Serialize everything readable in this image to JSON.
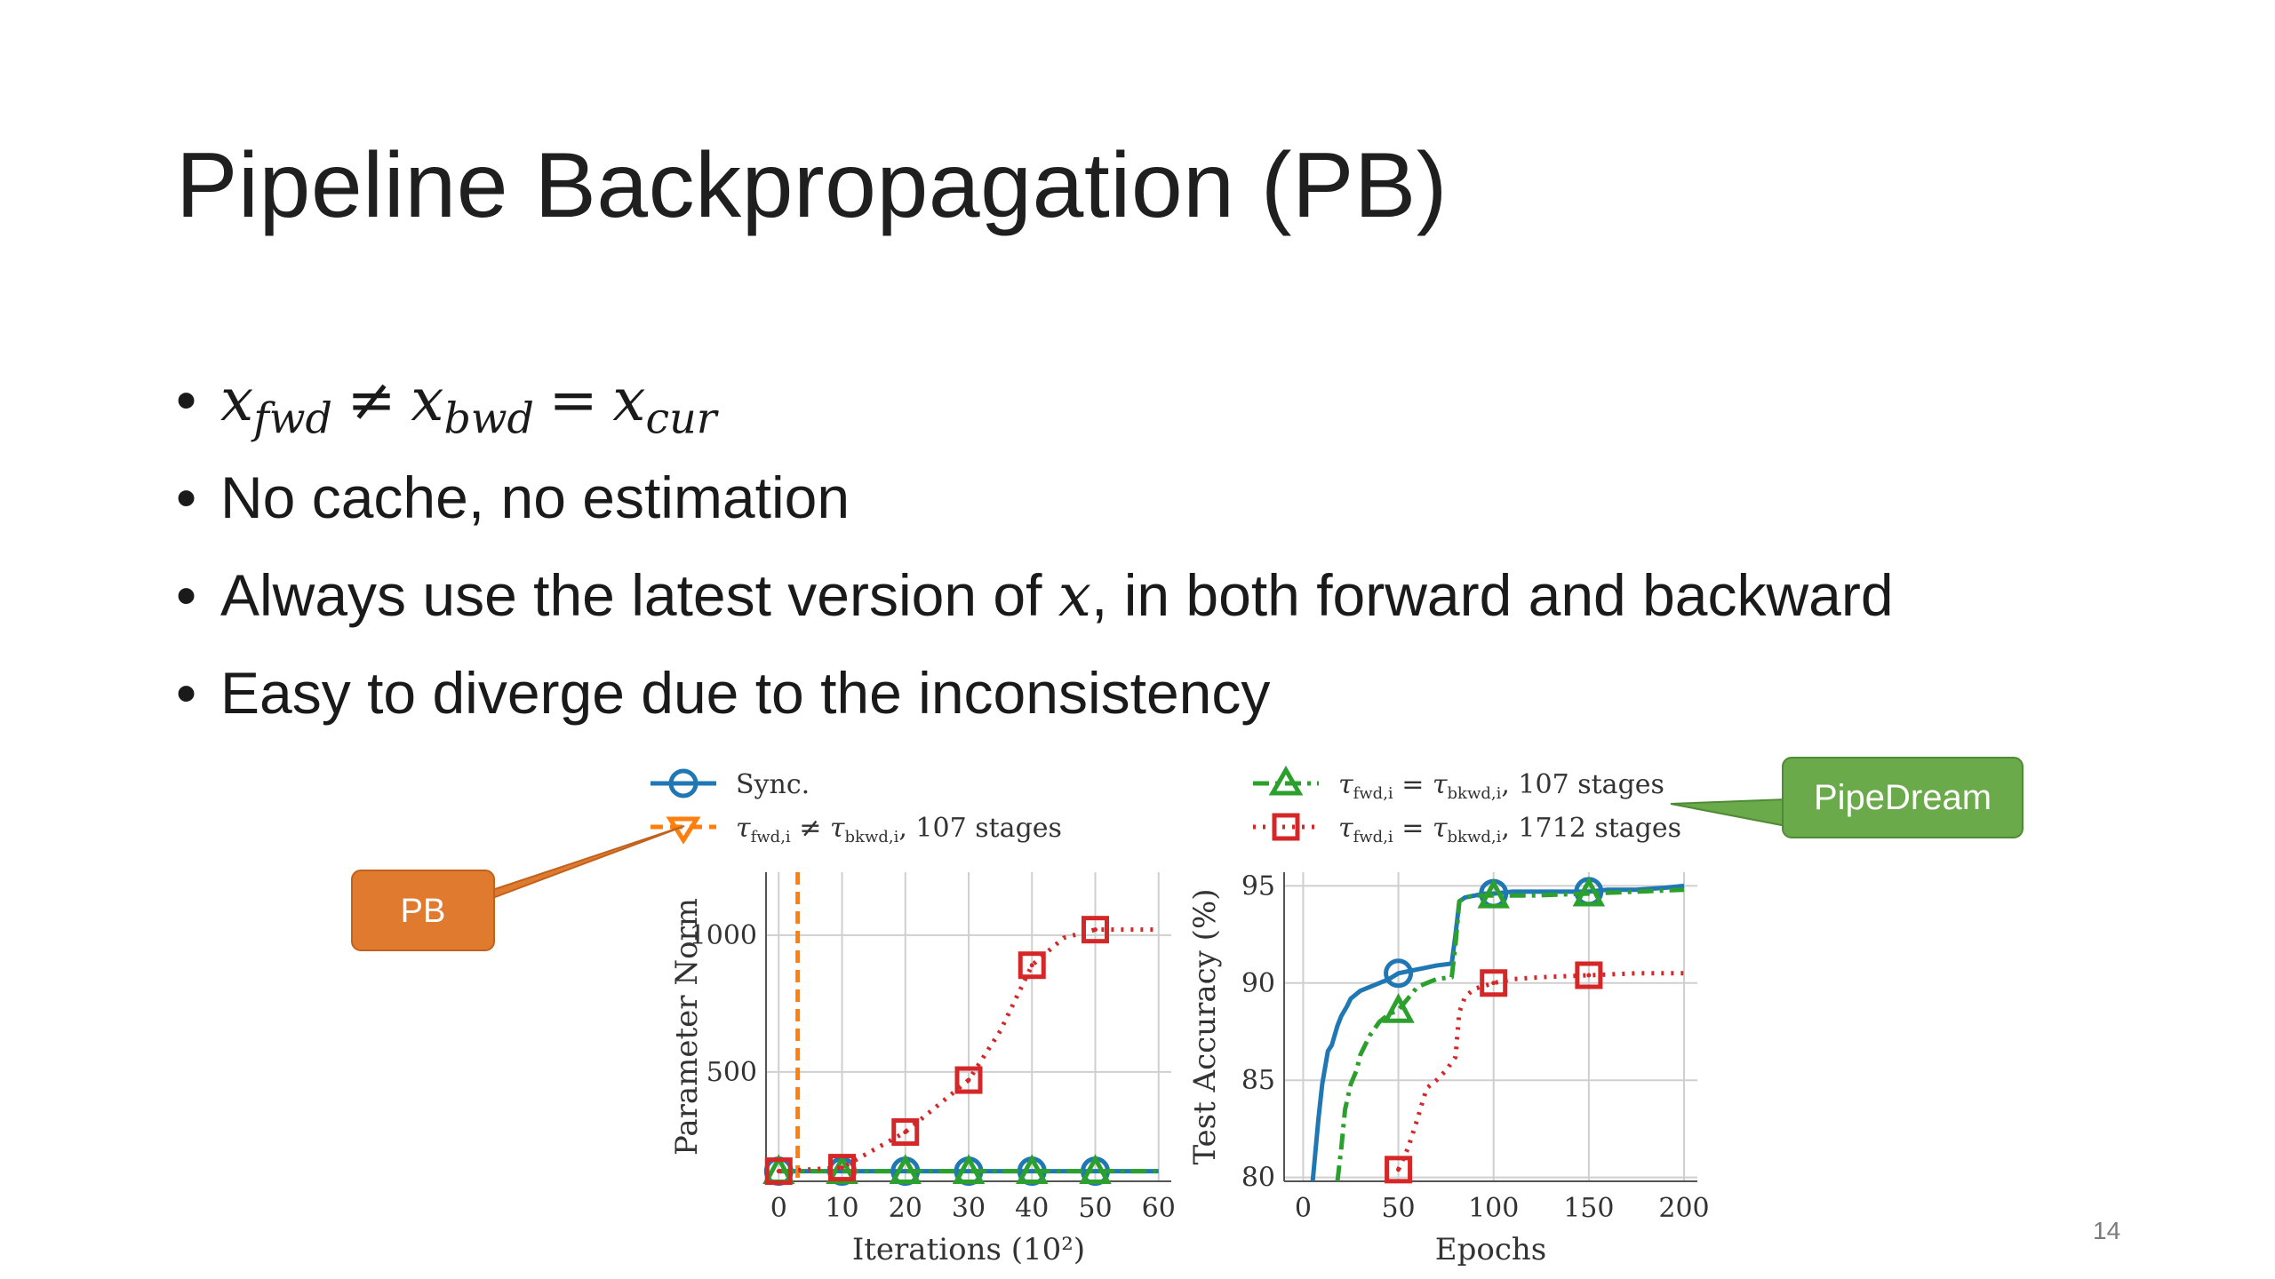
{
  "slide": {
    "title": "Pipeline Backpropagation (PB)",
    "page_number": "14",
    "bullets": [
      {
        "kind": "math"
      },
      {
        "text": "No cache, no estimation"
      },
      {
        "text_before": "Always use the latest version of ",
        "math_var": "x",
        "text_after": ", in both forward and backward"
      },
      {
        "text": "Easy to diverge due to the inconsistency"
      }
    ],
    "math": {
      "x": "x",
      "fwd": "fwd",
      "neq": "≠",
      "bwd": "bwd",
      "eq": "=",
      "cur": "cur"
    }
  },
  "callouts": {
    "pb": {
      "label": "PB",
      "color": "#e07a2e"
    },
    "pipedream": {
      "label": "PipeDream",
      "color": "#6aaa4a"
    }
  },
  "colors": {
    "sync": "#1f77b4",
    "pb": "#ff7f0e",
    "pipedream_107": "#2ca02c",
    "pipedream_1712": "#d62728"
  },
  "legend": {
    "left": [
      "Sync.",
      "τfwd,i ≠ τbkwd,i, 107 stages"
    ],
    "right": [
      "τfwd,i = τbkwd,i, 107 stages",
      "τfwd,i = τbkwd,i, 1712 stages"
    ]
  },
  "chart_data": [
    {
      "type": "line",
      "xlabel": "Iterations (10²)",
      "ylabel": "Parameter Norm",
      "xlim": [
        -2,
        62
      ],
      "ylim": [
        100,
        1230
      ],
      "xticks": [
        0,
        10,
        20,
        30,
        40,
        50,
        60
      ],
      "yticks": [
        500,
        1000
      ],
      "grid": true,
      "series": [
        {
          "name": "Sync.",
          "style": "solid",
          "marker": "circle",
          "x": [
            0,
            10,
            20,
            30,
            40,
            50,
            60
          ],
          "y": [
            137,
            137,
            137,
            137,
            137,
            137,
            137
          ],
          "markers_x": [
            0,
            10,
            20,
            30,
            40,
            50
          ]
        },
        {
          "name": "τfwd,i ≠ τbkwd,i, 107 stages",
          "style": "dashed",
          "marker": "triangle-down",
          "vertical_at_x": 3
        },
        {
          "name": "τfwd,i = τbkwd,i, 107 stages",
          "style": "dashdot",
          "marker": "triangle",
          "x": [
            0,
            10,
            20,
            30,
            40,
            50,
            60
          ],
          "y": [
            137,
            137,
            137,
            137,
            137,
            137,
            137
          ],
          "markers_x": [
            0,
            10,
            20,
            30,
            40,
            50
          ]
        },
        {
          "name": "τfwd,i = τbkwd,i, 1712 stages",
          "style": "dotted",
          "marker": "square",
          "x": [
            0,
            10,
            20,
            30,
            35,
            40,
            45,
            50,
            60
          ],
          "y": [
            137,
            150,
            280,
            470,
            650,
            890,
            990,
            1020,
            1020
          ],
          "markers_x": [
            0,
            10,
            20,
            30,
            40,
            50
          ]
        }
      ]
    },
    {
      "type": "line",
      "xlabel": "Epochs",
      "ylabel": "Test Accuracy (%)",
      "xlim": [
        -10,
        207
      ],
      "ylim": [
        79.8,
        95.7
      ],
      "xticks": [
        0,
        50,
        100,
        150,
        200
      ],
      "yticks": [
        80,
        85,
        90,
        95
      ],
      "grid": true,
      "series": [
        {
          "name": "Sync.",
          "style": "solid",
          "marker": "circle",
          "x": [
            5,
            8,
            10,
            13,
            15,
            18,
            20,
            23,
            25,
            30,
            35,
            40,
            45,
            50,
            55,
            60,
            70,
            78,
            80,
            82,
            85,
            90,
            95,
            100,
            110,
            120,
            130,
            140,
            150,
            160,
            175,
            190,
            200
          ],
          "y": [
            79.8,
            83.0,
            84.8,
            86.5,
            86.8,
            87.8,
            88.3,
            88.8,
            89.2,
            89.6,
            89.8,
            90.0,
            90.2,
            90.5,
            90.6,
            90.7,
            90.9,
            91.0,
            92.5,
            94.2,
            94.4,
            94.5,
            94.6,
            94.6,
            94.7,
            94.7,
            94.7,
            94.7,
            94.7,
            94.8,
            94.8,
            94.9,
            95.0
          ],
          "markers_x": [
            50,
            100,
            150
          ]
        },
        {
          "name": "τfwd,i = τbkwd,i, 107 stages",
          "style": "dashdot",
          "marker": "triangle",
          "x": [
            18,
            20,
            22,
            25,
            28,
            30,
            35,
            40,
            45,
            50,
            60,
            70,
            78,
            80,
            82,
            85,
            90,
            100,
            120,
            150,
            175,
            200
          ],
          "y": [
            79.8,
            81.5,
            83.5,
            84.8,
            85.5,
            86.3,
            87.3,
            88.0,
            88.4,
            88.6,
            89.8,
            90.2,
            90.3,
            92.0,
            94.2,
            94.4,
            94.5,
            94.5,
            94.5,
            94.6,
            94.7,
            94.8
          ],
          "markers_x": [
            50,
            100,
            150
          ]
        },
        {
          "name": "τfwd,i = τbkwd,i, 1712 stages",
          "style": "dotted",
          "marker": "square",
          "x": [
            50,
            55,
            60,
            63,
            65,
            70,
            75,
            80,
            82,
            85,
            90,
            100,
            110,
            125,
            150,
            175,
            200
          ],
          "y": [
            80.4,
            81.5,
            83.0,
            84.0,
            84.6,
            85.0,
            85.5,
            86.2,
            88.5,
            89.3,
            89.7,
            90.0,
            90.2,
            90.3,
            90.4,
            90.5,
            90.5
          ],
          "markers_x": [
            50,
            100,
            150
          ]
        }
      ]
    }
  ]
}
